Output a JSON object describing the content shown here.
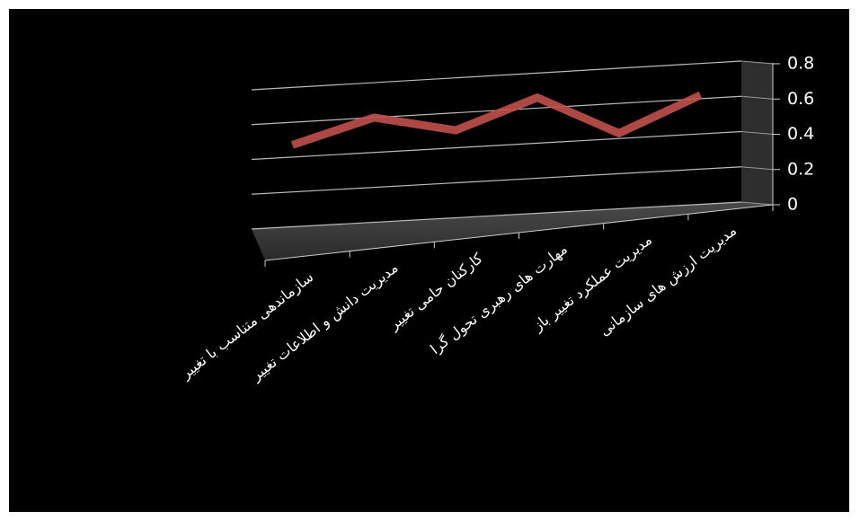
{
  "chart_data": {
    "type": "line",
    "categories": [
      "سازماندهی متناسب با تغییر",
      "مدیریت دانش و اطلاعات تغییر",
      "کارکنان حامی تغییر",
      "مهارت های رهبری تحول گرا",
      "مدیریت عملکرد تغییر باز",
      "مدیریت ارزش های سازمانی"
    ],
    "values": [
      0.47,
      0.6,
      0.5,
      0.66,
      0.43,
      0.62
    ],
    "color": "#c0504d",
    "ylim": [
      0,
      0.8
    ],
    "yticks": [
      0,
      0.2,
      0.4,
      0.6,
      0.8
    ],
    "grid": true
  }
}
